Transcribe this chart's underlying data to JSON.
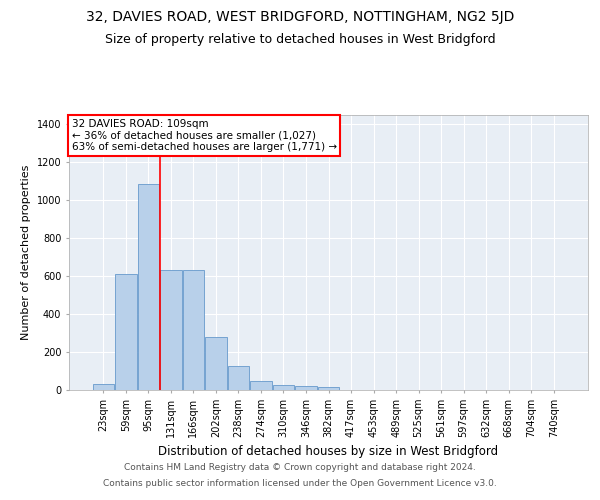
{
  "title": "32, DAVIES ROAD, WEST BRIDGFORD, NOTTINGHAM, NG2 5JD",
  "subtitle": "Size of property relative to detached houses in West Bridgford",
  "xlabel": "Distribution of detached houses by size in West Bridgford",
  "ylabel": "Number of detached properties",
  "footer_line1": "Contains HM Land Registry data © Crown copyright and database right 2024.",
  "footer_line2": "Contains public sector information licensed under the Open Government Licence v3.0.",
  "categories": [
    "23sqm",
    "59sqm",
    "95sqm",
    "131sqm",
    "166sqm",
    "202sqm",
    "238sqm",
    "274sqm",
    "310sqm",
    "346sqm",
    "382sqm",
    "417sqm",
    "453sqm",
    "489sqm",
    "525sqm",
    "561sqm",
    "597sqm",
    "632sqm",
    "668sqm",
    "704sqm",
    "740sqm"
  ],
  "bar_values": [
    33,
    613,
    1085,
    635,
    635,
    280,
    125,
    45,
    27,
    20,
    14,
    0,
    0,
    0,
    0,
    0,
    0,
    0,
    0,
    0,
    0
  ],
  "bar_color": "#b8d0ea",
  "bar_edge_color": "#6699cc",
  "vline_x": 2.5,
  "vline_color": "red",
  "annotation_text": "32 DAVIES ROAD: 109sqm\n← 36% of detached houses are smaller (1,027)\n63% of semi-detached houses are larger (1,771) →",
  "annotation_box_color": "white",
  "annotation_box_edge": "red",
  "ylim": [
    0,
    1450
  ],
  "yticks": [
    0,
    200,
    400,
    600,
    800,
    1000,
    1200,
    1400
  ],
  "plot_bg_color": "#e8eef5",
  "title_fontsize": 10,
  "subtitle_fontsize": 9,
  "xlabel_fontsize": 8.5,
  "ylabel_fontsize": 8,
  "tick_fontsize": 7,
  "annot_fontsize": 7.5,
  "footer_fontsize": 6.5
}
